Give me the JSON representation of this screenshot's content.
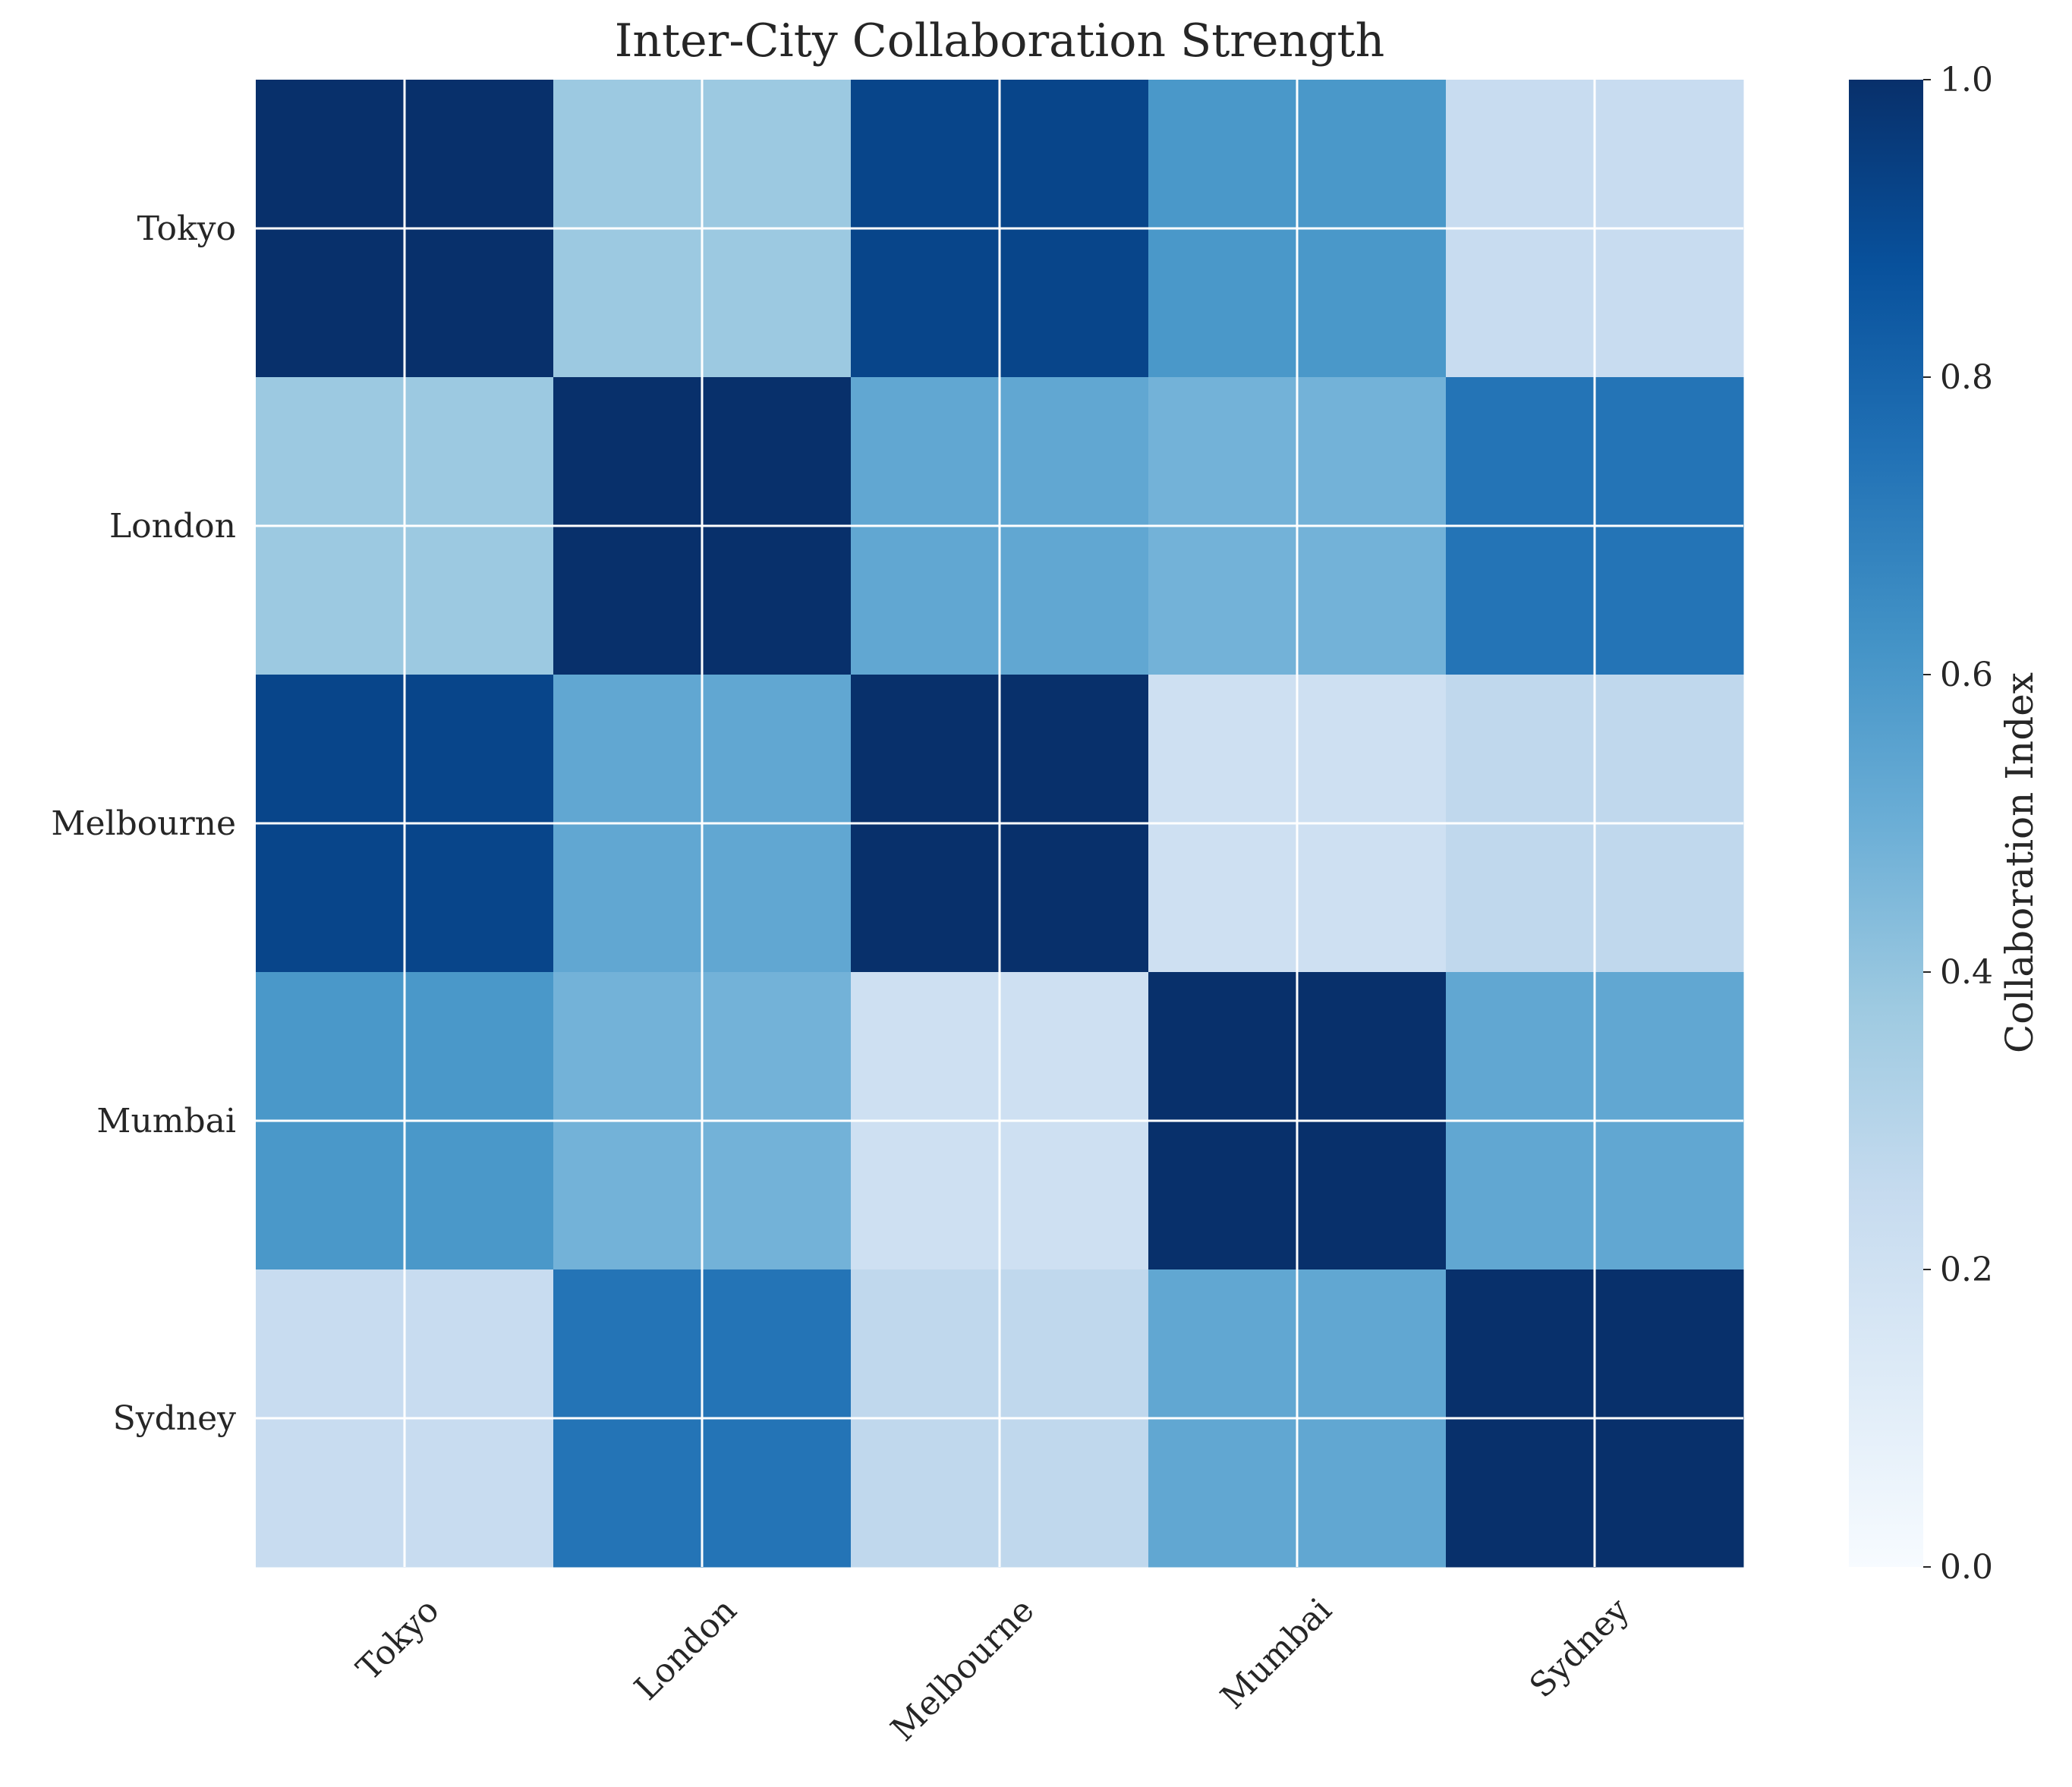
{
  "chart_data": {
    "type": "heatmap",
    "title": "Inter-City Collaboration Strength",
    "xlabel": "",
    "ylabel": "",
    "categories": [
      "Tokyo",
      "London",
      "Melbourne",
      "Mumbai",
      "Sydney"
    ],
    "values": [
      [
        1.0,
        0.38,
        0.92,
        0.6,
        0.24
      ],
      [
        0.38,
        1.0,
        0.53,
        0.48,
        0.74
      ],
      [
        0.92,
        0.53,
        1.0,
        0.21,
        0.27
      ],
      [
        0.6,
        0.48,
        0.21,
        1.0,
        0.53
      ],
      [
        0.24,
        0.74,
        0.27,
        0.53,
        1.0
      ]
    ],
    "color_scale": {
      "name": "Blues",
      "range": [
        0.0,
        1.0
      ],
      "colors": [
        "#f7fbff",
        "#deebf7",
        "#c6dbef",
        "#9ecae1",
        "#6baed6",
        "#4292c6",
        "#2171b5",
        "#08519c",
        "#08306b"
      ]
    },
    "colorbar": {
      "label": "Collaboration Index",
      "ticks": [
        "0.0",
        "0.2",
        "0.4",
        "0.6",
        "0.8",
        "1.0"
      ]
    },
    "grid": true,
    "grid_color": "#ffffff"
  }
}
